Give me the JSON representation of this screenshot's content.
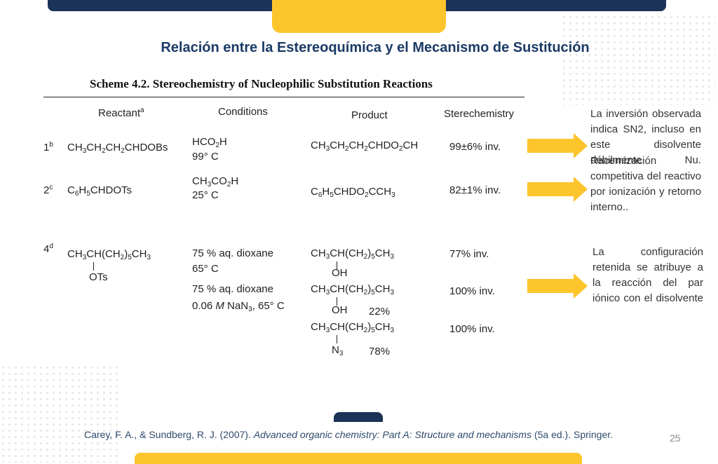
{
  "title": "Relación entre la Estereoquímica y el Mecanismo de Sustitución",
  "scheme": {
    "caption": "Scheme 4.2. Stereochemistry of Nucleophilic Substitution Reactions",
    "headers": [
      "Reactant",
      "Conditions",
      "Product",
      "Sterechemistry"
    ],
    "header_note": "a",
    "rows": [
      {
        "number": "1",
        "note": "b",
        "reactant": {
          "formula": "CH3CH2CH2CHDOBs"
        },
        "entries": [
          {
            "conditions": [
              "HCO2H",
              "99° C"
            ],
            "product": {
              "formula": "CH3CH2CH2CHDO2CH"
            },
            "stereochemistry": "99±6% inv."
          }
        ]
      },
      {
        "number": "2",
        "note": "c",
        "reactant": {
          "formula": "C6H5CHDOTs"
        },
        "entries": [
          {
            "conditions": [
              "CH3CO2H",
              "25° C"
            ],
            "product": {
              "formula": "C6H5CHDO2CCH3"
            },
            "stereochemistry": "82±1% inv."
          }
        ]
      },
      {
        "number": "4",
        "note": "d",
        "reactant": {
          "formula": "CH3CH(CH2)5CH3",
          "substituent": "OTs"
        },
        "entries": [
          {
            "conditions": [
              "75 % aq. dioxane",
              "65° C"
            ],
            "product": {
              "formula": "CH3CH(CH2)5CH3",
              "substituent": "OH"
            },
            "stereochemistry": "77%  inv."
          },
          {
            "conditions": [
              "75 % aq. dioxane",
              "0.06 M NaN3, 65° C"
            ],
            "product": {
              "formula": "CH3CH(CH2)5CH3",
              "substituent": "OH",
              "yield": "22%"
            },
            "stereochemistry": "100% inv."
          },
          {
            "product": {
              "formula": "CH3CH(CH2)5CH3",
              "substituent": "N3",
              "yield": "78%"
            },
            "stereochemistry": "100% inv."
          }
        ]
      }
    ]
  },
  "notes": [
    "La inversión observada indica SN2, incluso en este disolvente débilmente Nu.",
    "Racemización competitiva del reactivo por ionización y retorno interno..",
    "La configuración retenida se atribuye a la reacción del par iónico con el disolvente"
  ],
  "reference": {
    "authors": "Carey, F. A., & Sundberg, R. J. (2007).",
    "title": "Advanced organic chemistry: Part A: Structure and mechanisms",
    "details": "(5a ed.). Springer."
  },
  "page_number": "25"
}
